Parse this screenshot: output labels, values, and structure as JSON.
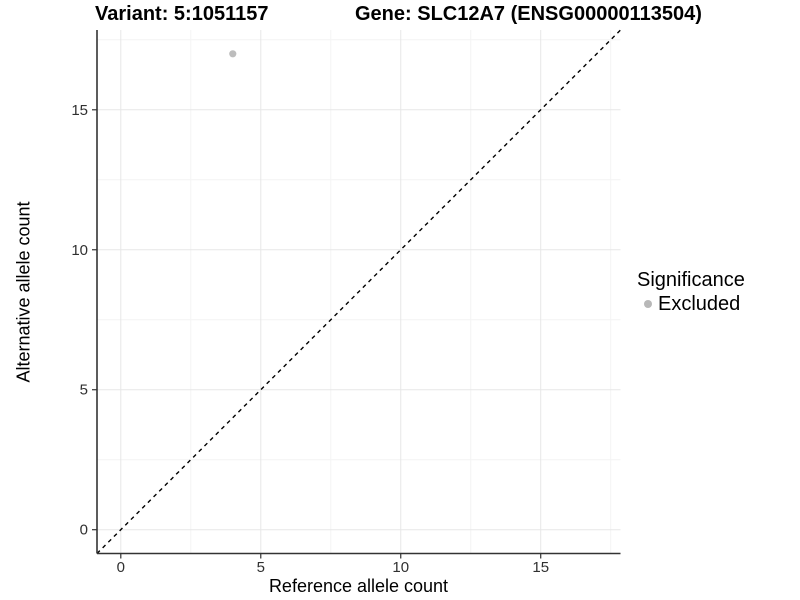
{
  "chart_data": {
    "type": "scatter",
    "titles": {
      "left": "Variant: 5:1051157",
      "right": "Gene: SLC12A7 (ENSG00000113504)"
    },
    "xlabel": "Reference allele count",
    "ylabel": "Alternative allele count",
    "xlim": [
      0,
      17
    ],
    "ylim": [
      0,
      17
    ],
    "expansion": 0.05,
    "x_ticks": [
      0,
      5,
      10,
      15
    ],
    "y_ticks": [
      0,
      5,
      10,
      15
    ],
    "minor_ticks": [
      2.5,
      7.5,
      12.5,
      17.5
    ],
    "grid": "major+minor",
    "points": [
      {
        "x": 4,
        "y": 17,
        "series": "Excluded"
      }
    ],
    "identity_line": {
      "slope": 1,
      "intercept": 0,
      "style": "dashed"
    },
    "legend": {
      "title": "Significance",
      "position": "right",
      "items": [
        {
          "label": "Excluded",
          "marker": "circle"
        }
      ]
    },
    "colors": {
      "point": "#bdbdbd",
      "legend_marker": "#b8b8b8",
      "axis_line": "#333333",
      "tick_label": "#303030",
      "grid_major": "#e7e7e7",
      "grid_minor": "#f4f4f4",
      "identity_line": "#000000"
    }
  }
}
